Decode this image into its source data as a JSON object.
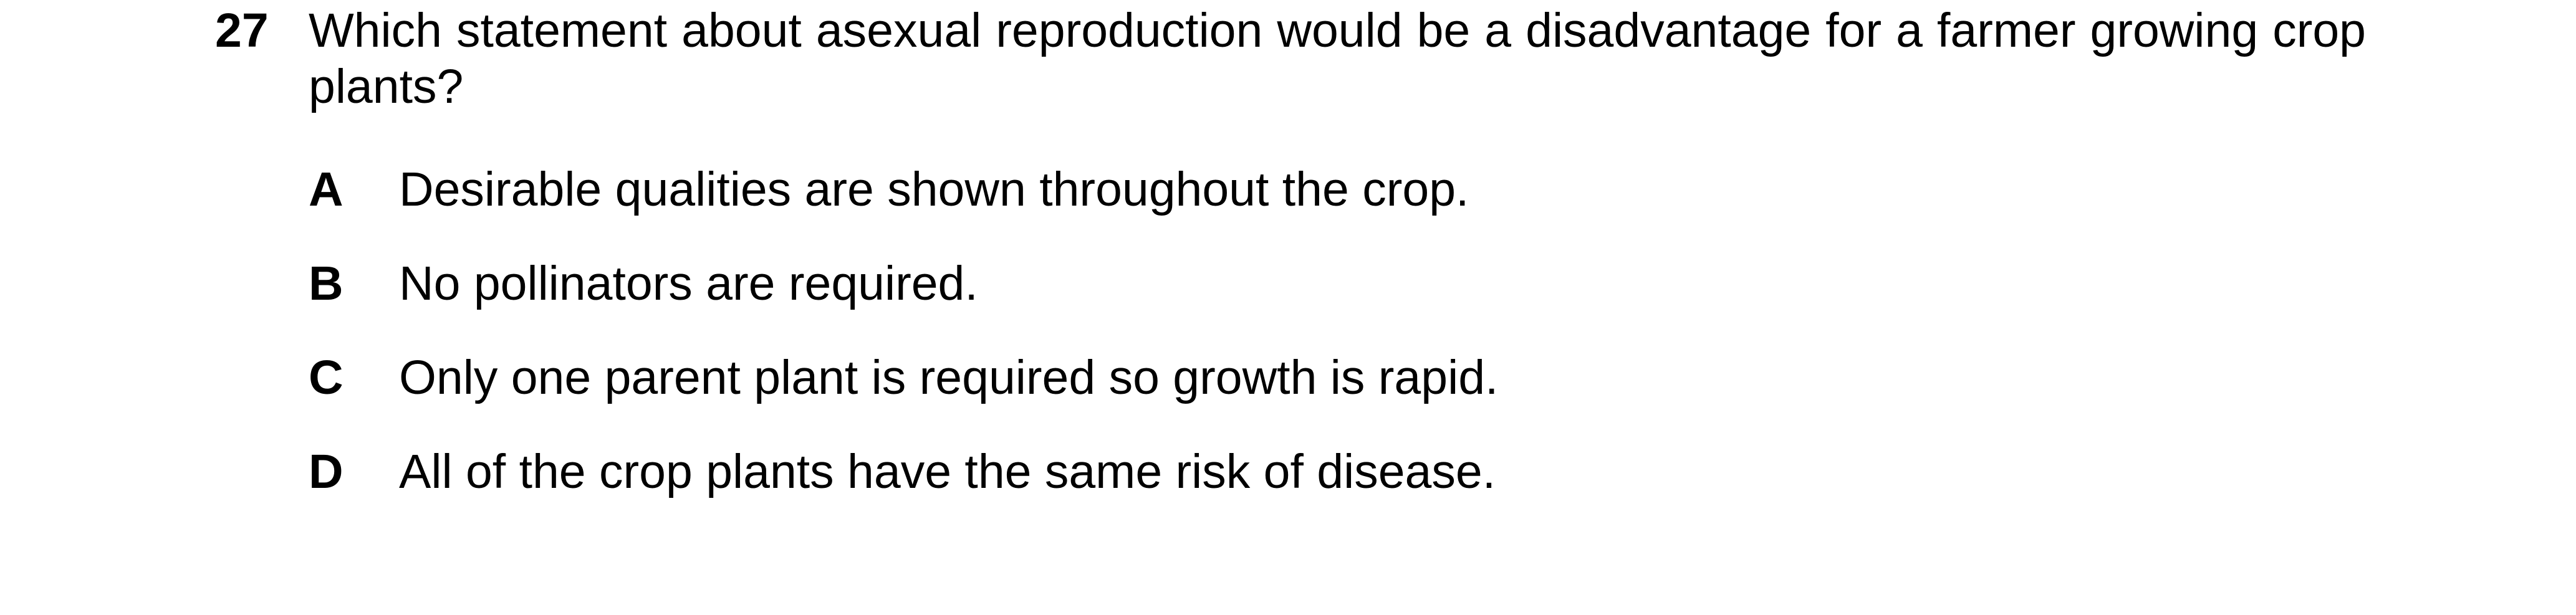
{
  "question": {
    "number": "27",
    "stem": "Which statement about asexual reproduction would be a disadvantage for a farmer growing crop plants?",
    "options": [
      {
        "letter": "A",
        "text": "Desirable qualities are shown throughout the crop."
      },
      {
        "letter": "B",
        "text": "No pollinators are required."
      },
      {
        "letter": "C",
        "text": "Only one parent plant is required so growth is rapid."
      },
      {
        "letter": "D",
        "text": "All of the crop plants have the same risk of disease."
      }
    ]
  }
}
